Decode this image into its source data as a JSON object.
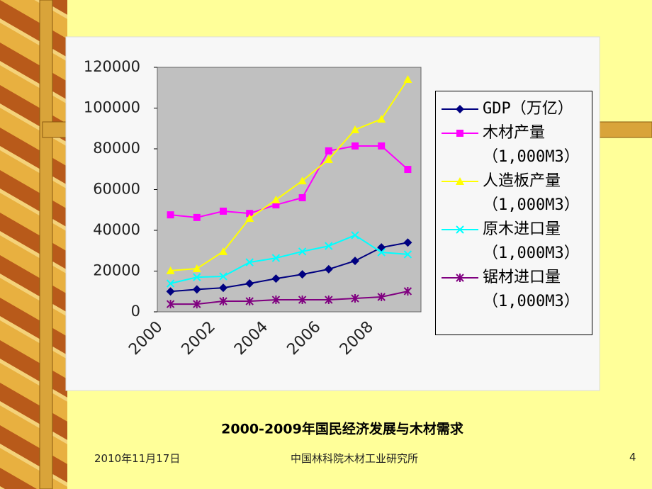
{
  "chart_data": {
    "type": "line",
    "title": "2000-2009年国民经济发展与木材需求",
    "categories": [
      "2000",
      null,
      "2002",
      null,
      "2004",
      null,
      "2006",
      null,
      "2008",
      null
    ],
    "ylim": [
      0,
      120000
    ],
    "yticks": [
      0,
      20000,
      40000,
      60000,
      80000,
      100000,
      120000
    ],
    "series": [
      {
        "name": "GDP（万亿）",
        "color": "#000080",
        "marker": "diamond",
        "values": [
          10000,
          11000,
          11800,
          13900,
          16300,
          18400,
          20900,
          25000,
          31600,
          34000
        ]
      },
      {
        "name": "木材产量（1,000M3）",
        "color": "#FF00FF",
        "marker": "square",
        "values": [
          47600,
          46300,
          49400,
          48300,
          52500,
          56000,
          79000,
          81400,
          81400,
          69900
        ]
      },
      {
        "name": "人造板产量（1,000M3）",
        "color": "#FFFF00",
        "marker": "triangle",
        "values": [
          20200,
          21200,
          29600,
          45900,
          55000,
          64300,
          74800,
          89400,
          94600,
          114100
        ]
      },
      {
        "name": "原木进口量（1,000M3）",
        "color": "#00FFFF",
        "marker": "x",
        "values": [
          13900,
          17000,
          17400,
          24300,
          26400,
          29600,
          32300,
          37600,
          29200,
          28200
        ]
      },
      {
        "name": "锯材进口量（1,000M3）",
        "color": "#800080",
        "marker": "asterisk",
        "values": [
          3800,
          3800,
          5200,
          5200,
          5900,
          5900,
          5900,
          6600,
          7300,
          10100
        ]
      }
    ]
  },
  "footer": {
    "date": "2010年11月17日",
    "organization": "中国林科院木材工业研究所",
    "page": "4"
  }
}
